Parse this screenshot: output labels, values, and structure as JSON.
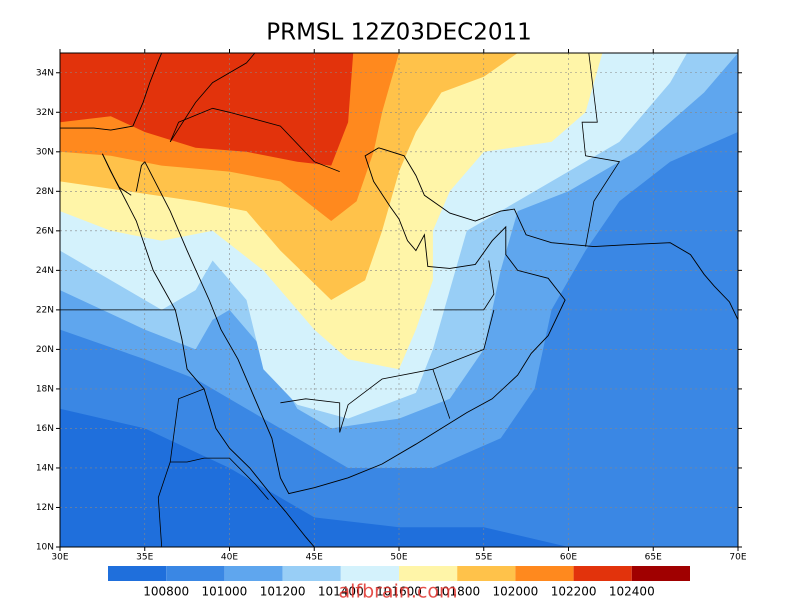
{
  "map": {
    "title": "PRMSL 12Z03DEC2011",
    "xlim": [
      30,
      70
    ],
    "ylim": [
      10,
      35
    ],
    "xticks": [
      {
        "value": 30,
        "label": "30E"
      },
      {
        "value": 35,
        "label": "35E"
      },
      {
        "value": 40,
        "label": "40E"
      },
      {
        "value": 45,
        "label": "45E"
      },
      {
        "value": 50,
        "label": "50E"
      },
      {
        "value": 55,
        "label": "55E"
      },
      {
        "value": 60,
        "label": "60E"
      },
      {
        "value": 65,
        "label": "65E"
      },
      {
        "value": 70,
        "label": "70E"
      }
    ],
    "yticks": [
      {
        "value": 10,
        "label": "10N"
      },
      {
        "value": 12,
        "label": "12N"
      },
      {
        "value": 14,
        "label": "14N"
      },
      {
        "value": 16,
        "label": "16N"
      },
      {
        "value": 18,
        "label": "18N"
      },
      {
        "value": 20,
        "label": "20N"
      },
      {
        "value": 22,
        "label": "22N"
      },
      {
        "value": 24,
        "label": "24N"
      },
      {
        "value": 26,
        "label": "26N"
      },
      {
        "value": 28,
        "label": "28N"
      },
      {
        "value": 30,
        "label": "30N"
      },
      {
        "value": 32,
        "label": "32N"
      },
      {
        "value": 34,
        "label": "34N"
      }
    ],
    "grid": true,
    "colorbar": {
      "levels": [
        100800,
        101000,
        101200,
        101400,
        101600,
        101800,
        102000,
        102200,
        102400
      ],
      "colors": [
        "#1f6fdc",
        "#3a87e4",
        "#5fa6ee",
        "#98cef6",
        "#d4f2fc",
        "#fff5a8",
        "#ffc24a",
        "#ff891e",
        "#e2330c",
        "#a00000"
      ]
    },
    "watermark": "alfbrain.com"
  }
}
